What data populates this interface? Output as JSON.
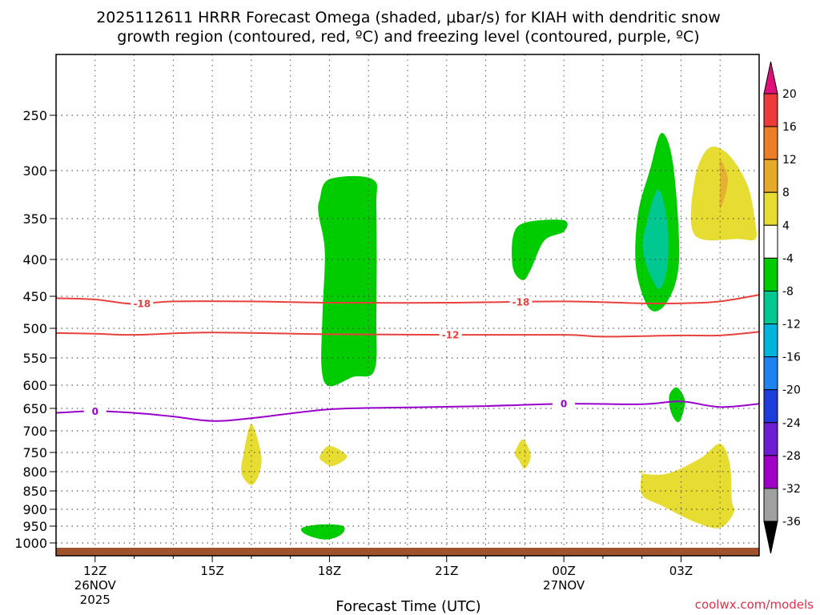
{
  "chart_data": {
    "type": "contour",
    "title_line1": "2025112611 HRRR Forecast Omega (shaded, μbar/s) for KIAH with dendritic snow",
    "title_line2": "growth region (contoured, red, ºC) and freezing level (contoured, purple, ºC)",
    "xlabel": "Forecast Time (UTC)",
    "credit": "coolwx.com/models",
    "y_levels": [
      250,
      300,
      350,
      400,
      450,
      500,
      550,
      600,
      650,
      700,
      750,
      800,
      850,
      900,
      950,
      1000
    ],
    "y_tick_labels": [
      "250",
      "300",
      "350",
      "400",
      "450",
      "500",
      "550",
      "600",
      "650",
      "700",
      "750",
      "800",
      "850",
      "900",
      "950",
      "1000"
    ],
    "x_ticks": [
      {
        "hour": 0,
        "label": "12Z",
        "date": "26NOV",
        "year": "2025"
      },
      {
        "hour": 3,
        "label": "15Z",
        "date": "",
        "year": ""
      },
      {
        "hour": 6,
        "label": "18Z",
        "date": "",
        "year": ""
      },
      {
        "hour": 9,
        "label": "21Z",
        "date": "",
        "year": ""
      },
      {
        "hour": 12,
        "label": "00Z",
        "date": "27NOV",
        "year": ""
      },
      {
        "hour": 15,
        "label": "03Z",
        "date": "",
        "year": ""
      }
    ],
    "x_range_hours": [
      -1,
      17
    ],
    "dendritic_lines": [
      {
        "name": "-18",
        "color": "#e8403c",
        "points": [
          [
            -1,
            453
          ],
          [
            0,
            455
          ],
          [
            1,
            462
          ],
          [
            2,
            458
          ],
          [
            4,
            458
          ],
          [
            6,
            460
          ],
          [
            9,
            460
          ],
          [
            12,
            458
          ],
          [
            14,
            461
          ],
          [
            15,
            461
          ],
          [
            16,
            458
          ],
          [
            17,
            448
          ]
        ],
        "labels": [
          {
            "hour": 1.2,
            "text": "-18"
          },
          {
            "hour": 10.9,
            "text": "-18"
          }
        ]
      },
      {
        "name": "-12",
        "color": "#e8403c",
        "points": [
          [
            -1,
            508
          ],
          [
            0,
            509
          ],
          [
            1,
            511
          ],
          [
            3,
            507
          ],
          [
            6,
            510
          ],
          [
            9,
            511
          ],
          [
            12,
            511
          ],
          [
            13,
            514
          ],
          [
            15,
            512
          ],
          [
            16,
            512
          ],
          [
            17,
            506
          ]
        ],
        "labels": [
          {
            "hour": 9.1,
            "text": "-12"
          }
        ]
      }
    ],
    "freezing_line": {
      "name": "0",
      "color": "#9900cc",
      "points": [
        [
          -1,
          660
        ],
        [
          0,
          656
        ],
        [
          1,
          660
        ],
        [
          2,
          668
        ],
        [
          3,
          678
        ],
        [
          4,
          672
        ],
        [
          6,
          652
        ],
        [
          8,
          648
        ],
        [
          10,
          645
        ],
        [
          12,
          640
        ],
        [
          14,
          641
        ],
        [
          15,
          635
        ],
        [
          16,
          647
        ],
        [
          17,
          640
        ]
      ],
      "labels": [
        {
          "hour": 0,
          "text": "0"
        },
        {
          "hour": 12,
          "text": "0"
        }
      ]
    },
    "omega_regions": [
      {
        "name": "omega-18z-column",
        "bin": "-8 to -4",
        "color": "#00cc00",
        "points": [
          [
            5.75,
            330
          ],
          [
            6.0,
            309
          ],
          [
            7.1,
            309
          ],
          [
            7.2,
            340
          ],
          [
            7.2,
            480
          ],
          [
            7.15,
            573
          ],
          [
            6.6,
            585
          ],
          [
            6.0,
            602
          ],
          [
            5.8,
            570
          ],
          [
            5.82,
            480
          ],
          [
            5.88,
            390
          ],
          [
            5.72,
            345
          ]
        ]
      },
      {
        "name": "omega-23z",
        "bin": "-8 to -4",
        "color": "#00cc00",
        "points": [
          [
            10.7,
            372
          ],
          [
            11.0,
            355
          ],
          [
            12.0,
            352
          ],
          [
            12.0,
            366
          ],
          [
            11.5,
            377
          ],
          [
            11.15,
            414
          ],
          [
            10.95,
            428
          ],
          [
            10.7,
            412
          ]
        ]
      },
      {
        "name": "omega-02z-column",
        "bin": "-8 to -4",
        "color": "#00cc00",
        "points": [
          [
            13.9,
            345
          ],
          [
            14.2,
            300
          ],
          [
            14.5,
            266
          ],
          [
            14.8,
            295
          ],
          [
            14.95,
            400
          ],
          [
            14.65,
            458
          ],
          [
            14.2,
            470
          ],
          [
            13.85,
            412
          ]
        ]
      },
      {
        "name": "omega-02z-core",
        "bin": "-12 to -8",
        "color": "#00c890",
        "points": [
          [
            14.05,
            370
          ],
          [
            14.4,
            320
          ],
          [
            14.65,
            355
          ],
          [
            14.65,
            410
          ],
          [
            14.45,
            440
          ],
          [
            14.2,
            420
          ],
          [
            14.05,
            395
          ]
        ]
      },
      {
        "name": "omega-02z-low",
        "bin": "-8 to -4",
        "color": "#00cc00",
        "points": [
          [
            14.7,
            622
          ],
          [
            14.9,
            605
          ],
          [
            15.1,
            635
          ],
          [
            14.95,
            680
          ],
          [
            14.75,
            660
          ]
        ]
      },
      {
        "name": "omega-18z-sfc",
        "bin": "-8 to -4",
        "color": "#00cc00",
        "points": [
          [
            5.3,
            955
          ],
          [
            5.8,
            945
          ],
          [
            6.35,
            950
          ],
          [
            6.3,
            975
          ],
          [
            5.9,
            990
          ],
          [
            5.4,
            975
          ]
        ]
      },
      {
        "name": "rise-03z-upper",
        "bin": "4 to 8",
        "color": "#e6dc32",
        "points": [
          [
            15.35,
            310
          ],
          [
            15.7,
            280
          ],
          [
            16.2,
            285
          ],
          [
            16.7,
            315
          ],
          [
            16.9,
            355
          ],
          [
            16.9,
            375
          ],
          [
            16.5,
            375
          ],
          [
            15.35,
            370
          ]
        ]
      },
      {
        "name": "rise-03z-core",
        "bin": "8 to 12",
        "color": "#e6b032",
        "points": [
          [
            16.0,
            310
          ],
          [
            16.0,
            290
          ],
          [
            16.2,
            310
          ],
          [
            16.0,
            340
          ]
        ]
      },
      {
        "name": "rise-16z",
        "bin": "4 to 8",
        "color": "#e6dc32",
        "points": [
          [
            3.8,
            755
          ],
          [
            4.0,
            685
          ],
          [
            4.25,
            755
          ],
          [
            4.2,
            805
          ],
          [
            4.0,
            835
          ],
          [
            3.75,
            805
          ]
        ]
      },
      {
        "name": "rise-18z",
        "bin": "4 to 8",
        "color": "#e6dc32",
        "points": [
          [
            5.75,
            760
          ],
          [
            6.0,
            735
          ],
          [
            6.45,
            760
          ],
          [
            6.1,
            785
          ],
          [
            5.85,
            775
          ]
        ]
      },
      {
        "name": "rise-23z",
        "bin": "4 to 8",
        "color": "#e6dc32",
        "points": [
          [
            10.75,
            752
          ],
          [
            10.95,
            720
          ],
          [
            11.15,
            758
          ],
          [
            11.0,
            792
          ],
          [
            10.85,
            770
          ]
        ]
      },
      {
        "name": "rise-03z-lower",
        "bin": "4 to 8",
        "color": "#e6dc32",
        "points": [
          [
            14.0,
            800
          ],
          [
            14.0,
            805
          ],
          [
            14.65,
            805
          ],
          [
            15.5,
            765
          ],
          [
            16.0,
            730
          ],
          [
            16.25,
            780
          ],
          [
            16.3,
            875
          ],
          [
            16.35,
            910
          ],
          [
            16.0,
            955
          ],
          [
            15.4,
            940
          ],
          [
            14.5,
            890
          ],
          [
            14.0,
            860
          ]
        ]
      }
    ],
    "ground": {
      "color": "#a0522d",
      "label": "terrain"
    },
    "colorbar": {
      "labels": [
        "20",
        "16",
        "12",
        "8",
        "4",
        "-4",
        "-8",
        "-12",
        "-16",
        "-20",
        "-24",
        "-28",
        "-32",
        "-36"
      ],
      "bins": [
        {
          "from": 16,
          "to": 20,
          "color": "#ee3a3a"
        },
        {
          "from": 12,
          "to": 16,
          "color": "#ee7d28"
        },
        {
          "from": 8,
          "to": 12,
          "color": "#e6a928"
        },
        {
          "from": 4,
          "to": 8,
          "color": "#e6dc32"
        },
        {
          "from": -4,
          "to": 4,
          "color": "#ffffff"
        },
        {
          "from": -8,
          "to": -4,
          "color": "#00cc00"
        },
        {
          "from": -12,
          "to": -8,
          "color": "#00c890"
        },
        {
          "from": -16,
          "to": -12,
          "color": "#00b4dc"
        },
        {
          "from": -20,
          "to": -16,
          "color": "#1e82f0"
        },
        {
          "from": -24,
          "to": -20,
          "color": "#1e3cdc"
        },
        {
          "from": -28,
          "to": -24,
          "color": "#6e1ed2"
        },
        {
          "from": -32,
          "to": -28,
          "color": "#a000c8"
        },
        {
          "from": -36,
          "to": -32,
          "color": "#a0a0a0"
        }
      ],
      "top_arrow_color": "#e0107a",
      "bottom_arrow_color": "#000000"
    }
  }
}
